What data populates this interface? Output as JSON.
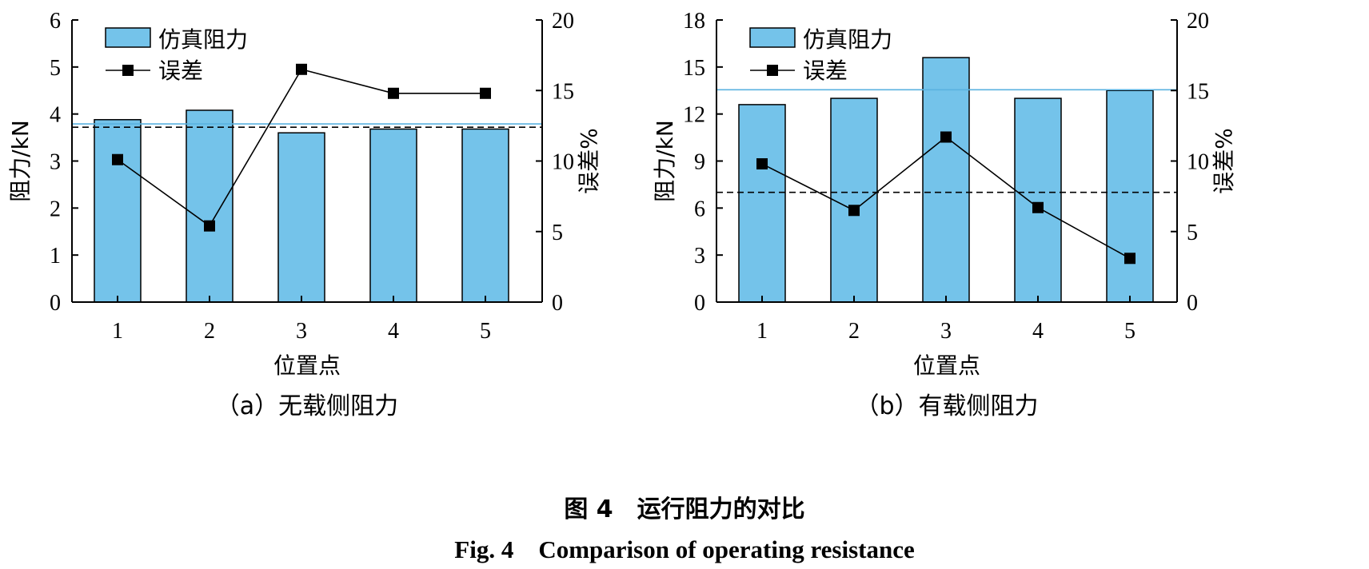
{
  "figure": {
    "caption_zh": "图 4　运行阻力的对比",
    "caption_en": "Fig. 4　Comparison of operating resistance"
  },
  "colors": {
    "bar_fill": "#74C3EA",
    "bar_stroke": "#000000",
    "sim_avg_line": "#5AB2E0",
    "meas_avg_line": "#000000",
    "error_series": "#000000"
  },
  "chart_data": [
    {
      "type": "bar",
      "subtitle": "（a）无载侧阻力",
      "categories": [
        "1",
        "2",
        "3",
        "4",
        "5"
      ],
      "xlabel": "位置点",
      "ylabel": "阻力/kN",
      "y2label": "误差%",
      "ylim": [
        0,
        6
      ],
      "yticks": [
        0,
        1,
        2,
        3,
        4,
        5,
        6
      ],
      "y2lim": [
        0,
        20
      ],
      "y2ticks": [
        0,
        5,
        10,
        15,
        20
      ],
      "series": [
        {
          "name": "仿真阻力",
          "type": "bar",
          "axis": "left",
          "values": [
            3.88,
            4.08,
            3.6,
            3.68,
            3.68
          ]
        },
        {
          "name": "误差",
          "type": "line",
          "axis": "right",
          "marker": "square",
          "values": [
            10.1,
            5.4,
            16.5,
            14.8,
            14.8
          ]
        }
      ],
      "reference_lines": [
        {
          "style": "solid",
          "color": "#5AB2E0",
          "axis": "left",
          "value": 3.79
        },
        {
          "style": "dashed",
          "color": "#000000",
          "axis": "left",
          "value": 3.72
        }
      ],
      "legend_position": "top-left",
      "grid": false
    },
    {
      "type": "bar",
      "subtitle": "（b）有载侧阻力",
      "categories": [
        "1",
        "2",
        "3",
        "4",
        "5"
      ],
      "xlabel": "位置点",
      "ylabel": "阻力/kN",
      "y2label": "误差%",
      "ylim": [
        0,
        18
      ],
      "yticks": [
        0,
        3,
        6,
        9,
        12,
        15,
        18
      ],
      "y2lim": [
        0,
        20
      ],
      "y2ticks": [
        0,
        5,
        10,
        15,
        20
      ],
      "series": [
        {
          "name": "仿真阻力",
          "type": "bar",
          "axis": "left",
          "values": [
            12.6,
            13.0,
            15.6,
            13.0,
            13.5
          ]
        },
        {
          "name": "误差",
          "type": "line",
          "axis": "right",
          "marker": "square",
          "values": [
            9.8,
            6.5,
            11.7,
            6.7,
            3.1
          ]
        }
      ],
      "reference_lines": [
        {
          "style": "solid",
          "color": "#5AB2E0",
          "axis": "left",
          "value": 13.55
        },
        {
          "style": "dashed",
          "color": "#000000",
          "axis": "left",
          "value": 7.0
        }
      ],
      "legend_position": "top-left",
      "grid": false
    }
  ]
}
